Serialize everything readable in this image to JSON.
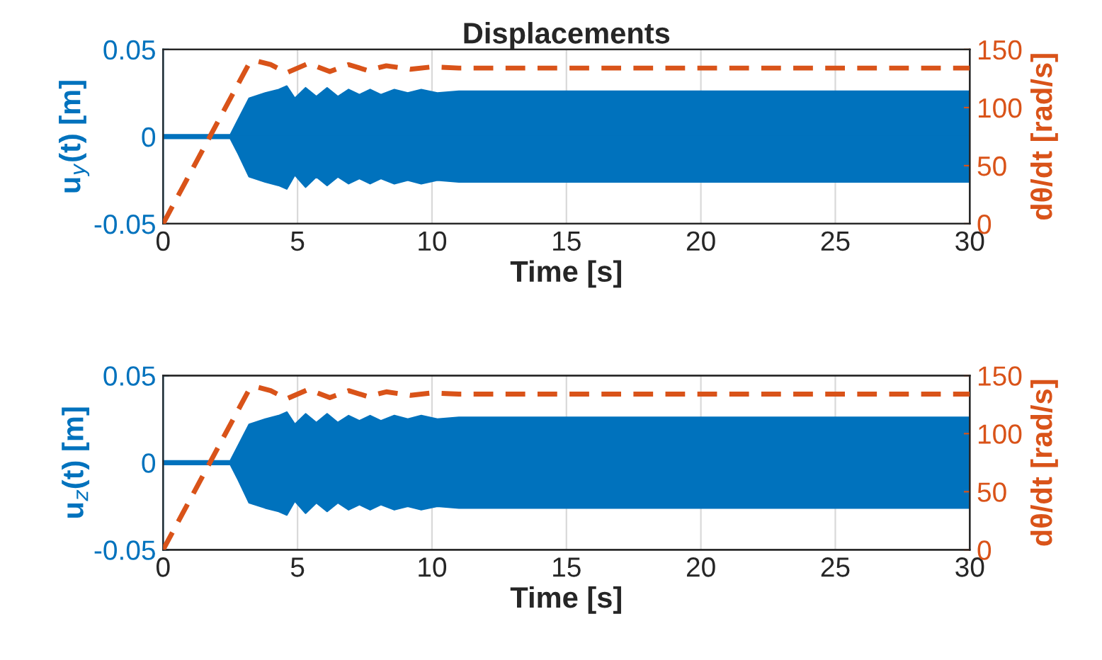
{
  "chart_data": [
    {
      "type": "line",
      "title": "Displacements",
      "xlabel": "Time [s]",
      "ylabel": "u$_{y}$(t) [m]",
      "y2label": "dθ/dt [rad/s]",
      "xlim": [
        0,
        30
      ],
      "xticks": [
        0,
        5,
        10,
        15,
        20,
        25,
        30
      ],
      "ylim": [
        -0.05,
        0.05
      ],
      "yticks": [
        {
          "value": -0.05,
          "label": "-0.05"
        },
        0,
        0.05
      ],
      "y2lim": [
        0,
        150
      ],
      "y2ticks": [
        0,
        50,
        100,
        150
      ],
      "grid": "x",
      "series": [
        {
          "type": "area",
          "color": "#0072bd",
          "x": [
            0,
            2.5,
            2.8,
            3.2,
            3.8,
            4.3,
            4.6,
            4.9,
            5.3,
            5.7,
            6.1,
            6.5,
            6.9,
            7.3,
            7.7,
            8.1,
            8.6,
            9.1,
            9.6,
            10.2,
            11,
            30
          ],
          "values": [
            0.001,
            0.001,
            0.01,
            0.022,
            0.025,
            0.027,
            0.029,
            0.022,
            0.028,
            0.023,
            0.028,
            0.023,
            0.027,
            0.024,
            0.027,
            0.024,
            0.027,
            0.025,
            0.027,
            0.025,
            0.026,
            0.026
          ]
        },
        {
          "type": "area",
          "color": "#0072bd",
          "x": [
            0,
            2.5,
            2.8,
            3.2,
            3.8,
            4.3,
            4.6,
            4.9,
            5.3,
            5.7,
            6.1,
            6.5,
            6.9,
            7.3,
            7.7,
            8.1,
            8.6,
            9.1,
            9.6,
            10.2,
            11,
            30
          ],
          "values": [
            -0.001,
            -0.001,
            -0.01,
            -0.023,
            -0.026,
            -0.028,
            -0.03,
            -0.022,
            -0.029,
            -0.023,
            -0.028,
            -0.023,
            -0.027,
            -0.024,
            -0.027,
            -0.024,
            -0.027,
            -0.025,
            -0.027,
            -0.025,
            -0.026,
            -0.026
          ]
        },
        {
          "axis": "y2",
          "color": "#d95319",
          "line_style": "dashed",
          "x": [
            0,
            3.2,
            3.5,
            4.0,
            4.6,
            5.4,
            6.2,
            6.9,
            7.6,
            8.3,
            9.2,
            10,
            11,
            30
          ],
          "values": [
            0,
            138,
            140,
            137,
            130,
            138,
            131,
            137,
            132,
            136,
            133,
            135,
            134,
            134
          ]
        }
      ]
    },
    {
      "type": "line",
      "xlabel": "Time [s]",
      "ylabel": "u$_{z}$(t) [m]",
      "y2label": "dθ/dt [rad/s]",
      "xlim": [
        0,
        30
      ],
      "xticks": [
        0,
        5,
        10,
        15,
        20,
        25,
        30
      ],
      "ylim": [
        -0.05,
        0.05
      ],
      "yticks": [
        {
          "value": -0.05,
          "label": "-0.05"
        },
        0,
        0.05
      ],
      "y2lim": [
        0,
        150
      ],
      "y2ticks": [
        0,
        50,
        100,
        150
      ],
      "grid": "x",
      "series": [
        {
          "type": "area",
          "color": "#0072bd",
          "x": [
            0,
            2.5,
            2.8,
            3.2,
            3.8,
            4.3,
            4.6,
            4.9,
            5.3,
            5.7,
            6.1,
            6.5,
            6.9,
            7.3,
            7.7,
            8.1,
            8.6,
            9.1,
            9.6,
            10.2,
            11,
            30
          ],
          "values": [
            0.001,
            0.001,
            0.01,
            0.022,
            0.025,
            0.027,
            0.029,
            0.022,
            0.028,
            0.023,
            0.028,
            0.023,
            0.027,
            0.024,
            0.027,
            0.024,
            0.027,
            0.025,
            0.027,
            0.025,
            0.026,
            0.026
          ]
        },
        {
          "type": "area",
          "color": "#0072bd",
          "x": [
            0,
            2.5,
            2.8,
            3.2,
            3.8,
            4.3,
            4.6,
            4.9,
            5.3,
            5.7,
            6.1,
            6.5,
            6.9,
            7.3,
            7.7,
            8.1,
            8.6,
            9.1,
            9.6,
            10.2,
            11,
            30
          ],
          "values": [
            -0.001,
            -0.001,
            -0.01,
            -0.023,
            -0.026,
            -0.028,
            -0.03,
            -0.022,
            -0.029,
            -0.023,
            -0.028,
            -0.023,
            -0.027,
            -0.024,
            -0.027,
            -0.024,
            -0.027,
            -0.025,
            -0.027,
            -0.025,
            -0.026,
            -0.026
          ]
        },
        {
          "axis": "y2",
          "color": "#d95319",
          "line_style": "dashed",
          "x": [
            0,
            3.2,
            3.5,
            4.0,
            4.6,
            5.4,
            6.2,
            6.9,
            7.6,
            8.3,
            9.2,
            10,
            11,
            30
          ],
          "values": [
            0,
            138,
            140,
            137,
            130,
            138,
            131,
            137,
            132,
            136,
            133,
            135,
            134,
            134
          ]
        }
      ]
    }
  ]
}
